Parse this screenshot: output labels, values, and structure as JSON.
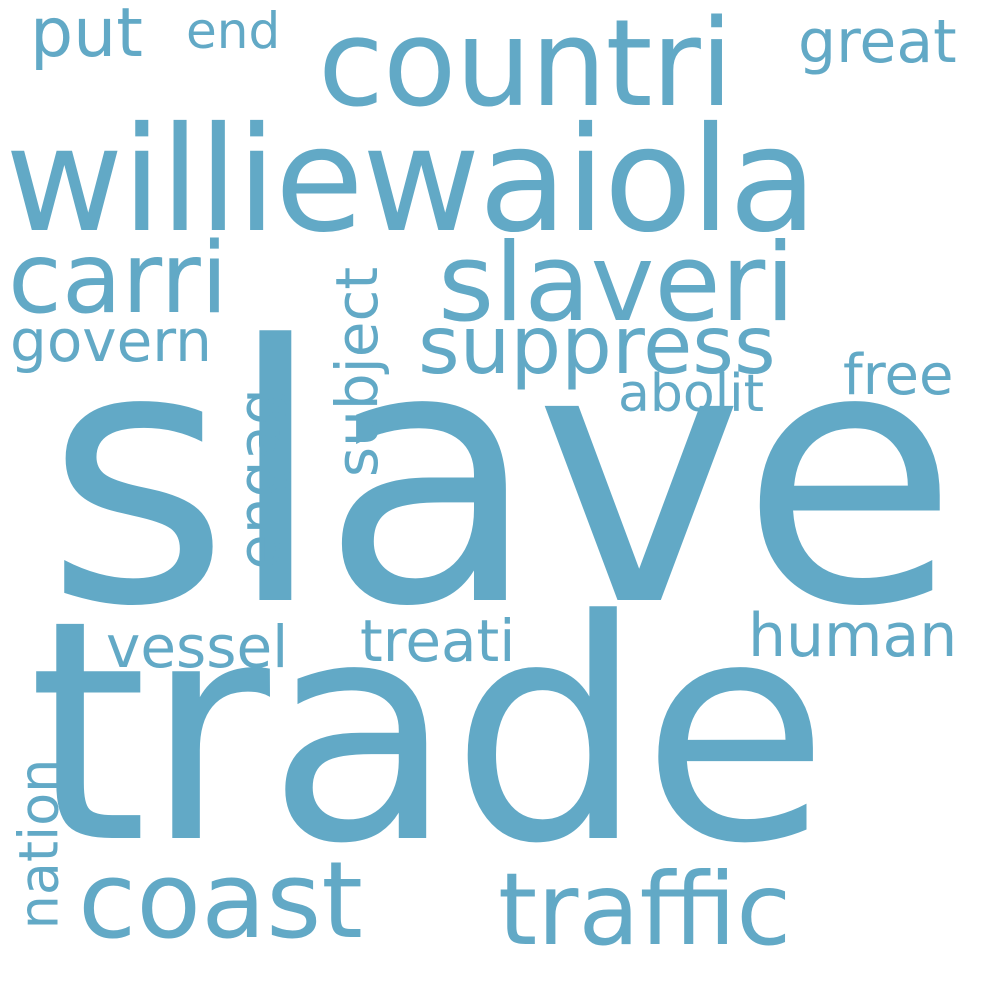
{
  "cloud": {
    "color": "#62A9C6",
    "background": "#ffffff",
    "words": {
      "slave": "slave",
      "trade": "trade",
      "williewaiola": "williewaiola",
      "countri": "countri",
      "carri": "carri",
      "slaveri": "slaveri",
      "suppress": "suppress",
      "coast": "coast",
      "traffic": "traffic",
      "put": "put",
      "end": "end",
      "great": "great",
      "govern": "govern",
      "abolit": "abolit",
      "free": "free",
      "vessel": "vessel",
      "treati": "treati",
      "human": "human",
      "subject": "subject",
      "engag": "engag",
      "nation": "nation"
    }
  }
}
